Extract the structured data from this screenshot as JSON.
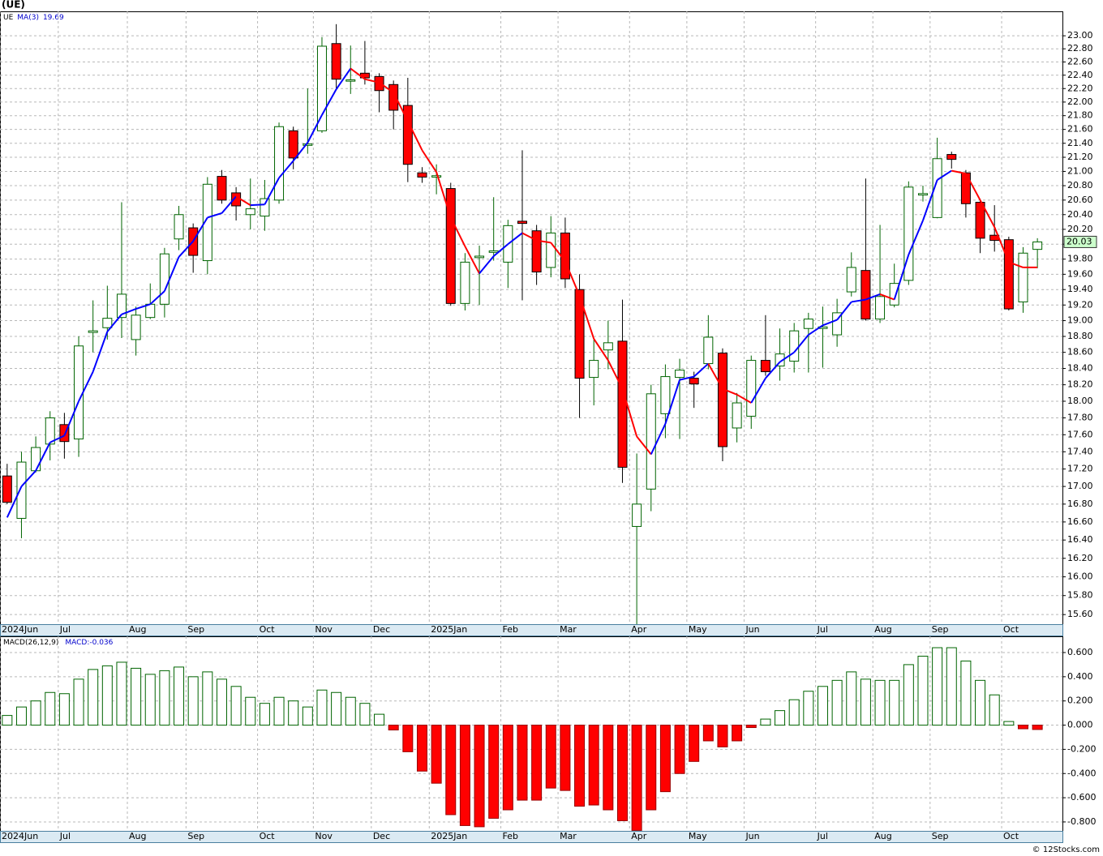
{
  "chart_data": [
    {
      "type": "candlestick",
      "title": "(UE)",
      "symbol": "UE",
      "ma_name": "MA(3)",
      "log_scale": true,
      "grid": true,
      "up_color": "#006400",
      "down_color": "#ff0000",
      "ma_up_color": "#0000ff",
      "ma_down_color": "#ff0000",
      "last_color": "#ccffcc",
      "open": [
        17.12,
        16.64,
        17.18,
        17.49,
        17.72,
        17.55,
        18.85,
        18.91,
        19.04,
        18.76,
        19.04,
        19.21,
        20.07,
        20.22,
        19.78,
        20.93,
        20.7,
        20.4,
        20.38,
        20.6,
        21.58,
        21.37,
        21.58,
        22.88,
        22.31,
        22.43,
        22.38,
        22.26,
        21.95,
        20.98,
        20.92,
        20.76,
        19.22,
        19.82,
        19.89,
        19.76,
        20.31,
        20.18,
        19.69,
        20.15,
        19.4,
        18.29,
        18.63,
        18.74,
        16.55,
        16.97,
        17.85,
        18.29,
        18.28,
        18.46,
        18.59,
        17.68,
        17.82,
        18.5,
        18.43,
        18.49,
        18.9,
        18.9,
        18.82,
        19.37,
        19.65,
        19.02,
        19.2,
        19.52,
        20.67,
        20.36,
        21.24,
        20.98,
        20.57,
        20.12,
        20.06,
        19.24,
        19.93
      ],
      "high": [
        17.26,
        17.4,
        17.58,
        17.88,
        17.86,
        18.8,
        19.26,
        19.45,
        20.57,
        19.18,
        19.48,
        19.95,
        20.52,
        20.28,
        20.92,
        21.02,
        20.78,
        20.9,
        20.88,
        21.7,
        21.64,
        22.2,
        22.98,
        23.18,
        22.85,
        22.92,
        22.43,
        22.32,
        22.36,
        21.06,
        21.1,
        20.84,
        19.88,
        19.98,
        20.64,
        20.33,
        21.3,
        20.26,
        20.38,
        20.36,
        19.6,
        18.76,
        19.0,
        19.27,
        17.38,
        18.2,
        18.45,
        18.52,
        18.36,
        19.07,
        18.65,
        18.1,
        18.56,
        19.07,
        18.9,
        18.97,
        19.1,
        19.18,
        19.28,
        19.89,
        20.9,
        20.26,
        19.74,
        20.86,
        20.8,
        21.48,
        21.28,
        21.02,
        20.6,
        20.53,
        20.1,
        19.96,
        20.08
      ],
      "low": [
        16.8,
        16.42,
        17.16,
        17.3,
        17.32,
        17.34,
        18.6,
        18.76,
        18.78,
        18.56,
        19.02,
        19.04,
        19.92,
        19.62,
        19.6,
        20.55,
        20.32,
        20.2,
        20.18,
        20.55,
        21.03,
        21.25,
        21.55,
        22.18,
        22.12,
        22.26,
        21.85,
        21.6,
        20.85,
        20.84,
        20.68,
        19.19,
        19.13,
        19.2,
        19.78,
        19.42,
        19.26,
        19.46,
        19.56,
        19.42,
        17.8,
        17.95,
        18.39,
        17.04,
        15.5,
        16.72,
        17.56,
        17.55,
        17.92,
        18.39,
        17.29,
        17.51,
        17.67,
        18.31,
        18.25,
        18.35,
        18.35,
        18.41,
        18.67,
        19.31,
        19.0,
        18.97,
        19.17,
        19.46,
        20.58,
        20.35,
        21.04,
        20.36,
        19.88,
        19.9,
        19.13,
        19.1,
        19.68
      ],
      "close": [
        16.82,
        17.28,
        17.45,
        17.8,
        17.52,
        18.68,
        18.87,
        19.03,
        19.34,
        19.07,
        19.21,
        19.87,
        20.4,
        19.85,
        20.82,
        20.6,
        20.52,
        20.48,
        20.62,
        21.64,
        21.19,
        21.39,
        22.84,
        22.34,
        22.33,
        22.36,
        22.17,
        21.88,
        21.1,
        20.92,
        20.94,
        19.22,
        19.76,
        19.84,
        19.91,
        20.25,
        20.28,
        19.63,
        20.15,
        19.54,
        18.28,
        18.5,
        18.72,
        17.22,
        16.8,
        18.09,
        18.3,
        18.38,
        18.21,
        18.79,
        17.46,
        17.98,
        18.5,
        18.36,
        18.58,
        18.87,
        19.02,
        18.92,
        19.1,
        19.69,
        19.02,
        19.31,
        19.48,
        20.78,
        20.69,
        21.18,
        21.17,
        20.55,
        20.08,
        20.05,
        19.15,
        19.88,
        20.03
      ],
      "ma": {
        "values": [
          16.65,
          17.0,
          17.18,
          17.51,
          17.59,
          18.0,
          18.36,
          18.86,
          19.08,
          19.15,
          19.21,
          19.38,
          19.83,
          20.04,
          20.36,
          20.42,
          20.65,
          20.53,
          20.54,
          20.91,
          21.15,
          21.41,
          21.81,
          22.19,
          22.5,
          22.34,
          22.29,
          22.14,
          21.72,
          21.3,
          20.99,
          20.36,
          19.97,
          19.61,
          19.84,
          20.0,
          20.15,
          20.05,
          20.02,
          19.77,
          19.32,
          18.77,
          18.5,
          18.15,
          17.58,
          17.37,
          17.73,
          18.26,
          18.3,
          18.46,
          18.15,
          18.08,
          17.98,
          18.28,
          18.48,
          18.6,
          18.82,
          18.94,
          19.01,
          19.24,
          19.27,
          19.34,
          19.27,
          19.86,
          20.32,
          20.88,
          21.01,
          20.97,
          20.6,
          20.23,
          19.76,
          19.69,
          19.69
        ]
      },
      "xlim": [
        -0.5,
        73.75
      ],
      "xticks": [
        {
          "value": -0.5,
          "label": "2024Jun"
        },
        {
          "value": 3.57,
          "label": "Jul"
        },
        {
          "value": 8.4,
          "label": "Aug"
        },
        {
          "value": 12.5,
          "label": "Sep"
        },
        {
          "value": 17.5,
          "label": "Oct"
        },
        {
          "value": 21.4,
          "label": "Nov"
        },
        {
          "value": 25.45,
          "label": "Dec"
        },
        {
          "value": 29.5,
          "label": "2025Jan"
        },
        {
          "value": 34.5,
          "label": "Feb"
        },
        {
          "value": 38.5,
          "label": "Mar"
        },
        {
          "value": 43.5,
          "label": "Apr"
        },
        {
          "value": 47.5,
          "label": "May"
        },
        {
          "value": 51.5,
          "label": "Jun"
        },
        {
          "value": 56.5,
          "label": "Jul"
        },
        {
          "value": 60.5,
          "label": "Aug"
        },
        {
          "value": 64.5,
          "label": "Sep"
        },
        {
          "value": 69.5,
          "label": "Oct"
        }
      ],
      "ylim": [
        15.5,
        23.38
      ],
      "yticks": [
        {
          "value": 15.6,
          "label": "15.60"
        },
        {
          "value": 15.8,
          "label": "15.80"
        },
        {
          "value": 16,
          "label": "16.00"
        },
        {
          "value": 16.2,
          "label": "16.20"
        },
        {
          "value": 16.4,
          "label": "16.40"
        },
        {
          "value": 16.6,
          "label": "16.60"
        },
        {
          "value": 16.8,
          "label": "16.80"
        },
        {
          "value": 17,
          "label": "17.00"
        },
        {
          "value": 17.2,
          "label": "17.20"
        },
        {
          "value": 17.4,
          "label": "17.40"
        },
        {
          "value": 17.6,
          "label": "17.60"
        },
        {
          "value": 17.8,
          "label": "17.80"
        },
        {
          "value": 18,
          "label": "18.00"
        },
        {
          "value": 18.2,
          "label": "18.20"
        },
        {
          "value": 18.4,
          "label": "18.40"
        },
        {
          "value": 18.6,
          "label": "18.60"
        },
        {
          "value": 18.8,
          "label": "18.80"
        },
        {
          "value": 19,
          "label": "19.00"
        },
        {
          "value": 19.2,
          "label": "19.20"
        },
        {
          "value": 19.4,
          "label": "19.40"
        },
        {
          "value": 19.6,
          "label": "19.60"
        },
        {
          "value": 19.8,
          "label": "19.80"
        },
        {
          "value": 20,
          "label": "20.00"
        },
        {
          "value": 20.2,
          "label": "20.20"
        },
        {
          "value": 20.4,
          "label": "20.40"
        },
        {
          "value": 20.6,
          "label": "20.60"
        },
        {
          "value": 20.8,
          "label": "20.80"
        },
        {
          "value": 21,
          "label": "21.00"
        },
        {
          "value": 21.2,
          "label": "21.20"
        },
        {
          "value": 21.4,
          "label": "21.40"
        },
        {
          "value": 21.6,
          "label": "21.60"
        },
        {
          "value": 21.8,
          "label": "21.80"
        },
        {
          "value": 22,
          "label": "22.00"
        },
        {
          "value": 22.2,
          "label": "22.20"
        },
        {
          "value": 22.4,
          "label": "22.40"
        },
        {
          "value": 22.6,
          "label": "22.60"
        },
        {
          "value": 22.8,
          "label": "22.80"
        },
        {
          "value": 23,
          "label": "23.00"
        }
      ]
    },
    {
      "type": "bar",
      "title": "MACD(26,12,9)",
      "value_prefix": "MACD:",
      "last_value": -0.036,
      "up_color": "#006400",
      "down_color": "#ff0000",
      "grid": true,
      "values": [
        0.08,
        0.15,
        0.2,
        0.27,
        0.26,
        0.38,
        0.46,
        0.49,
        0.52,
        0.47,
        0.42,
        0.45,
        0.48,
        0.4,
        0.44,
        0.38,
        0.32,
        0.23,
        0.18,
        0.23,
        0.2,
        0.15,
        0.29,
        0.27,
        0.23,
        0.18,
        0.09,
        -0.04,
        -0.22,
        -0.38,
        -0.48,
        -0.74,
        -0.83,
        -0.84,
        -0.77,
        -0.7,
        -0.62,
        -0.62,
        -0.52,
        -0.54,
        -0.67,
        -0.66,
        -0.7,
        -0.79,
        -0.87,
        -0.7,
        -0.55,
        -0.4,
        -0.3,
        -0.13,
        -0.18,
        -0.13,
        -0.02,
        0.05,
        0.12,
        0.21,
        0.28,
        0.32,
        0.37,
        0.44,
        0.38,
        0.37,
        0.37,
        0.5,
        0.57,
        0.64,
        0.64,
        0.53,
        0.37,
        0.25,
        0.03,
        -0.03,
        -0.036
      ],
      "ylim": [
        -0.874,
        0.734
      ],
      "yticks": [
        {
          "value": 0.6,
          "label": "0.600"
        },
        {
          "value": 0.4,
          "label": "0.400"
        },
        {
          "value": 0.2,
          "label": "0.200"
        },
        {
          "value": 0,
          "label": "0.000"
        },
        {
          "value": -0.2,
          "label": "-0.200"
        },
        {
          "value": -0.4,
          "label": "-0.400"
        },
        {
          "value": -0.6,
          "label": "-0.600"
        },
        {
          "value": -0.8,
          "label": "-0.800"
        }
      ],
      "watermark": "© 12Stocks.com"
    }
  ]
}
